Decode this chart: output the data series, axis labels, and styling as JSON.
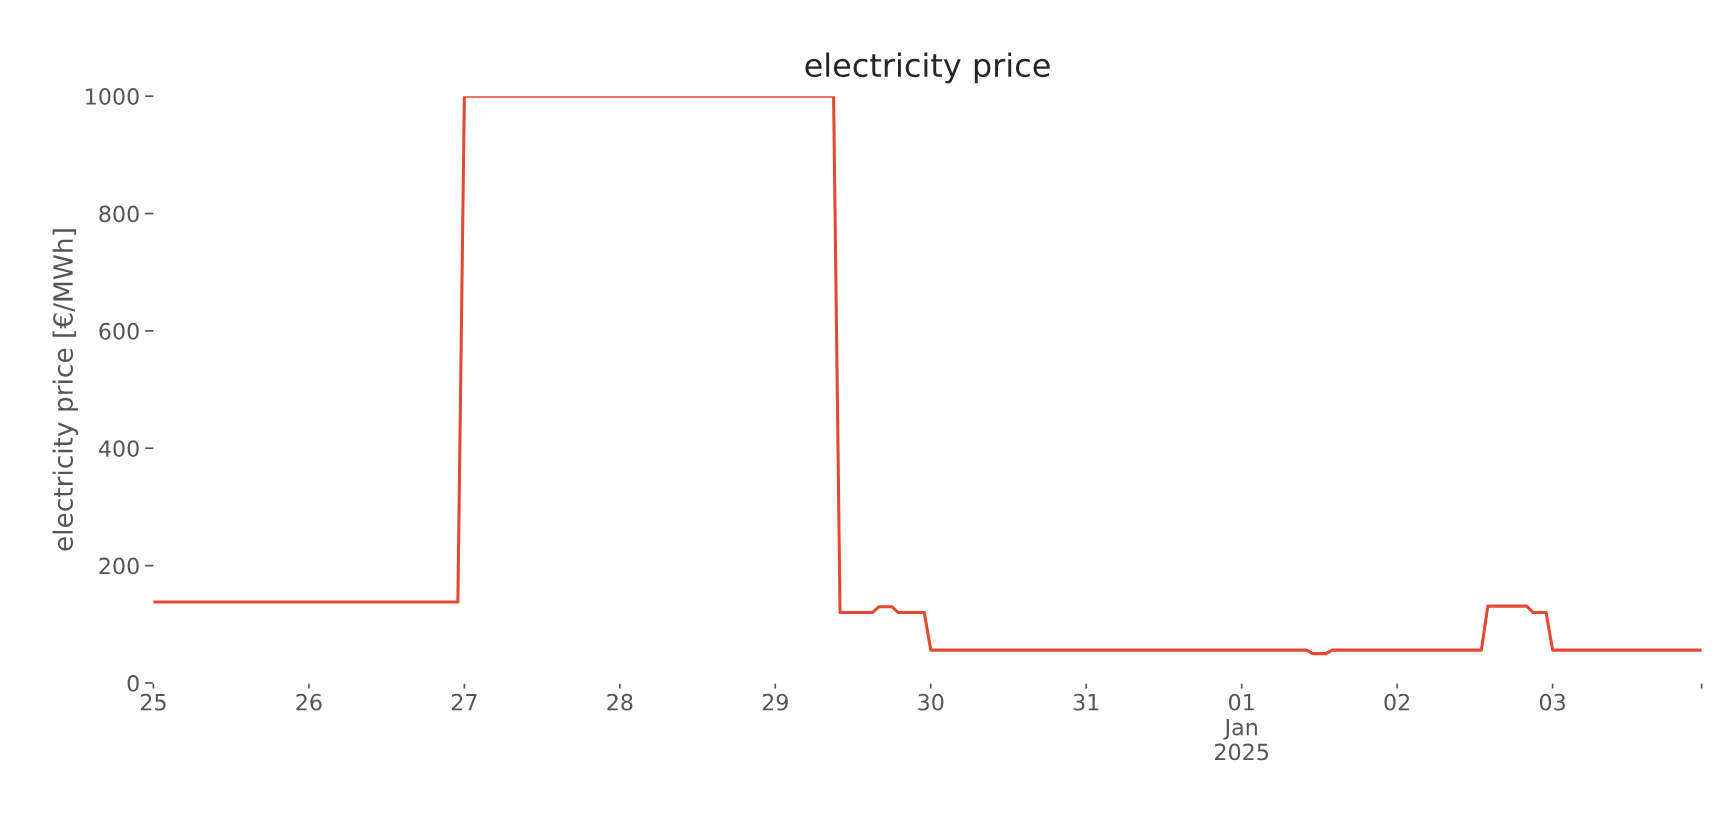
{
  "chart_data": {
    "type": "line",
    "title": "electricity price",
    "ylabel": "electricity price [€/MWh]",
    "x": [
      "2024-12-25T00:00",
      "2024-12-26T23:00",
      "2024-12-27T00:00",
      "2024-12-29T09:00",
      "2024-12-29T10:00",
      "2024-12-29T15:00",
      "2024-12-29T16:00",
      "2024-12-29T18:00",
      "2024-12-29T19:00",
      "2024-12-29T23:00",
      "2024-12-30T00:00",
      "2025-01-01T10:00",
      "2025-01-01T11:00",
      "2025-01-01T13:00",
      "2025-01-01T14:00",
      "2025-01-02T13:00",
      "2025-01-02T14:00",
      "2025-01-02T20:00",
      "2025-01-02T21:00",
      "2025-01-02T23:00",
      "2025-01-03T00:00",
      "2025-01-03T23:00"
    ],
    "series": [
      {
        "color": "#e24a33",
        "values": [
          138,
          138,
          1000,
          1000,
          120,
          120,
          130,
          130,
          120,
          120,
          56,
          56,
          50,
          50,
          56,
          56,
          131,
          131,
          120,
          120,
          56,
          56
        ]
      }
    ],
    "xlim": [
      "2024-12-25T00:00",
      "2025-01-03T23:00"
    ],
    "xticks": [
      {
        "value": "2024-12-25",
        "label": "25"
      },
      {
        "value": "2024-12-26",
        "label": "26"
      },
      {
        "value": "2024-12-27",
        "label": "27"
      },
      {
        "value": "2024-12-28",
        "label": "28"
      },
      {
        "value": "2024-12-29",
        "label": "29"
      },
      {
        "value": "2024-12-30",
        "label": "30"
      },
      {
        "value": "2024-12-31",
        "label": "31"
      },
      {
        "value": "2025-01-01",
        "label": "01\nJan\n2025"
      },
      {
        "value": "2025-01-02",
        "label": "02"
      },
      {
        "value": "2025-01-03",
        "label": "03"
      },
      {
        "value": "2025-01-03T23:00",
        "label": null
      }
    ],
    "ylim": [
      0,
      1000
    ],
    "yticks": [
      0,
      200,
      400,
      600,
      800,
      1000
    ],
    "grid": false,
    "marker": "none",
    "line_style": "solid"
  }
}
